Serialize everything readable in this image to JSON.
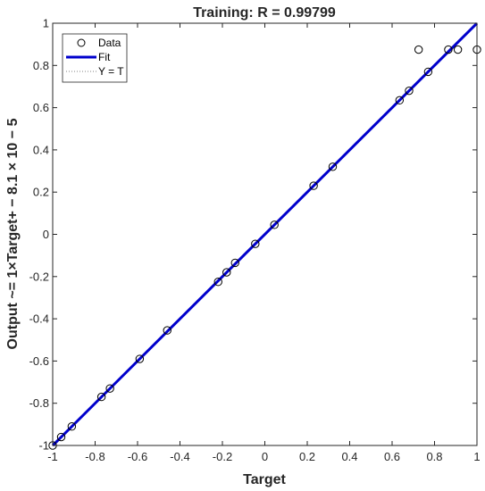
{
  "chart_data": {
    "type": "scatter",
    "title": "Training: R = 0.99799",
    "xlabel": "Target",
    "ylabel": "Output ~= 1×Target+ − 8.1 × 10 − 5",
    "xlim": [
      -1,
      1
    ],
    "ylim": [
      -1,
      1
    ],
    "xticks": [
      "-1",
      "-0.8",
      "-0.6",
      "-0.4",
      "-0.2",
      "0",
      "0.2",
      "0.4",
      "0.6",
      "0.8",
      "1"
    ],
    "yticks": [
      "-1",
      "-0.8",
      "-0.6",
      "-0.4",
      "-0.2",
      "0",
      "0.2",
      "0.4",
      "0.6",
      "0.8",
      "1"
    ],
    "grid": false,
    "legend_position": "top-left",
    "legend": [
      "Data",
      "Fit",
      "Y = T"
    ],
    "series": [
      {
        "name": "Data",
        "marker": "open-circle",
        "color": "#000000",
        "points": [
          [
            -1.0,
            -1.0
          ],
          [
            -0.96,
            -0.96
          ],
          [
            -0.91,
            -0.91
          ],
          [
            -0.77,
            -0.77
          ],
          [
            -0.73,
            -0.73
          ],
          [
            -0.59,
            -0.59
          ],
          [
            -0.46,
            -0.455
          ],
          [
            -0.22,
            -0.225
          ],
          [
            -0.18,
            -0.18
          ],
          [
            -0.14,
            -0.135
          ],
          [
            -0.045,
            -0.045
          ],
          [
            0.045,
            0.045
          ],
          [
            0.23,
            0.23
          ],
          [
            0.32,
            0.32
          ],
          [
            0.635,
            0.635
          ],
          [
            0.68,
            0.68
          ],
          [
            0.725,
            0.875
          ],
          [
            0.77,
            0.77
          ],
          [
            0.865,
            0.875
          ],
          [
            0.91,
            0.875
          ],
          [
            1.0,
            0.875
          ]
        ]
      },
      {
        "name": "Fit",
        "style": "line",
        "color": "#0000cc",
        "slope": 1,
        "intercept": -8.1e-05
      },
      {
        "name": "Y = T",
        "style": "dotted",
        "color": "#808080",
        "slope": 1,
        "intercept": 0
      }
    ]
  }
}
